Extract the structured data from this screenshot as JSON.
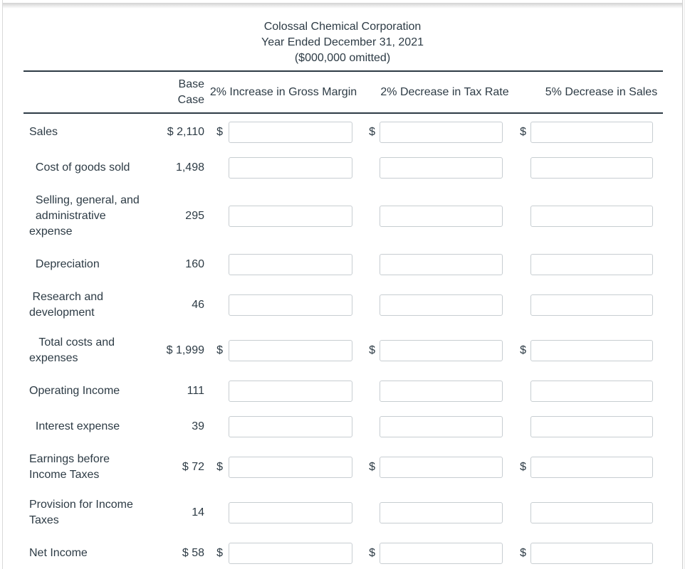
{
  "title": {
    "company": "Colossal Chemical Corporation",
    "period": "Year Ended December 31, 2021",
    "units": "($000,000 omitted)"
  },
  "symbols": {
    "dollar": "$"
  },
  "table": {
    "columns": {
      "base_case": "Base Case",
      "gross_margin": "2% Increase in Gross Margin",
      "tax_rate": "2% Decrease in Tax Rate",
      "sales": "5% Decrease in Sales"
    },
    "rows": [
      {
        "label": "Sales",
        "base": "$ 2,110",
        "scenario_dollar": true,
        "inputs": [
          "",
          "",
          ""
        ]
      },
      {
        "label": "  Cost of goods sold",
        "base": "1,498",
        "scenario_dollar": false,
        "inputs": [
          "",
          "",
          ""
        ]
      },
      {
        "label": "  Selling, general, and\n  administrative\nexpense",
        "base": "295",
        "scenario_dollar": false,
        "inputs": [
          "",
          "",
          ""
        ]
      },
      {
        "label": "  Depreciation",
        "base": "160",
        "scenario_dollar": false,
        "inputs": [
          "",
          "",
          ""
        ]
      },
      {
        "label": " Research and\ndevelopment",
        "base": "46",
        "scenario_dollar": false,
        "inputs": [
          "",
          "",
          ""
        ]
      },
      {
        "label": "   Total costs and\nexpenses",
        "base": "$ 1,999",
        "scenario_dollar": true,
        "inputs": [
          "",
          "",
          ""
        ]
      },
      {
        "label": "Operating Income",
        "base": "111",
        "scenario_dollar": false,
        "inputs": [
          "",
          "",
          ""
        ]
      },
      {
        "label": "  Interest expense",
        "base": "39",
        "scenario_dollar": false,
        "inputs": [
          "",
          "",
          ""
        ]
      },
      {
        "label": "Earnings before\nIncome Taxes",
        "base": "$ 72",
        "scenario_dollar": true,
        "inputs": [
          "",
          "",
          ""
        ]
      },
      {
        "label": "Provision for Income\nTaxes",
        "base": "14",
        "scenario_dollar": false,
        "inputs": [
          "",
          "",
          ""
        ]
      },
      {
        "label": "Net Income",
        "base": "$ 58",
        "scenario_dollar": true,
        "inputs": [
          "",
          "",
          ""
        ]
      }
    ]
  }
}
